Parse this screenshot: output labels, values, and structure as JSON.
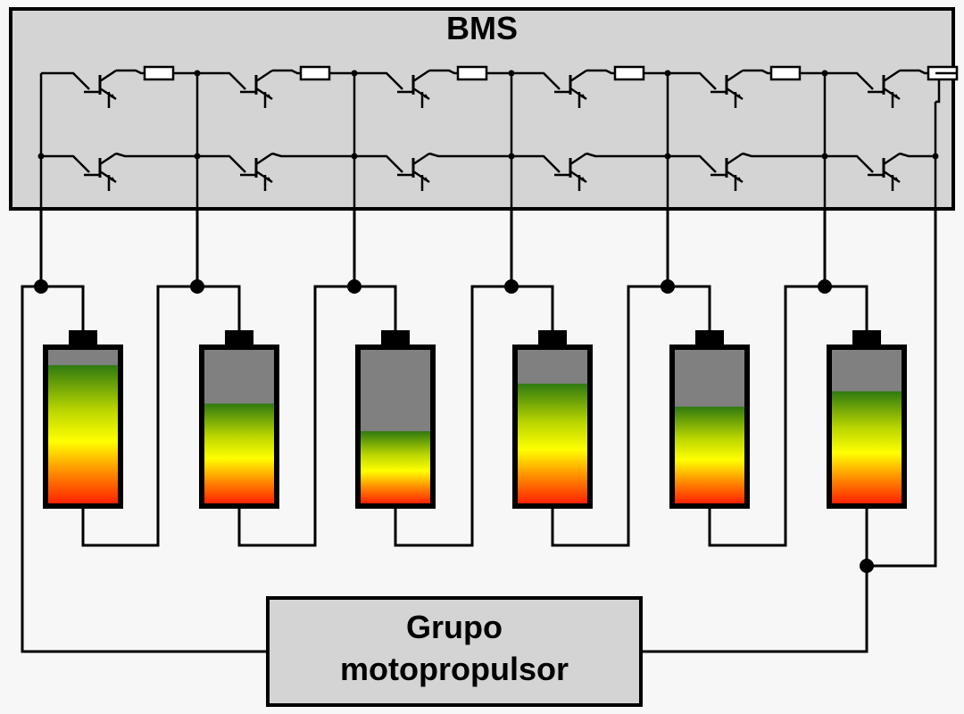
{
  "bms": {
    "label": "BMS"
  },
  "motor": {
    "line1": "Grupo",
    "line2": "motopropulsor"
  },
  "cells": [
    {
      "charge": 0.9,
      "color": "charge-gradient"
    },
    {
      "charge": 0.65,
      "color": "charge-gradient"
    },
    {
      "charge": 0.47,
      "color": "charge-gradient"
    },
    {
      "charge": 0.78,
      "color": "charge-gradient"
    },
    {
      "charge": 0.63,
      "color": "charge-gradient"
    },
    {
      "charge": 0.73,
      "color": "charge-gradient"
    }
  ],
  "colors": {
    "bms_fill": "#d4d4d4",
    "motor_fill": "#d4d4d4",
    "cell_empty": "#808080",
    "gradient": [
      "#ff2200",
      "#ff8800",
      "#ffff00",
      "#c8e000",
      "#3c8c00"
    ]
  }
}
